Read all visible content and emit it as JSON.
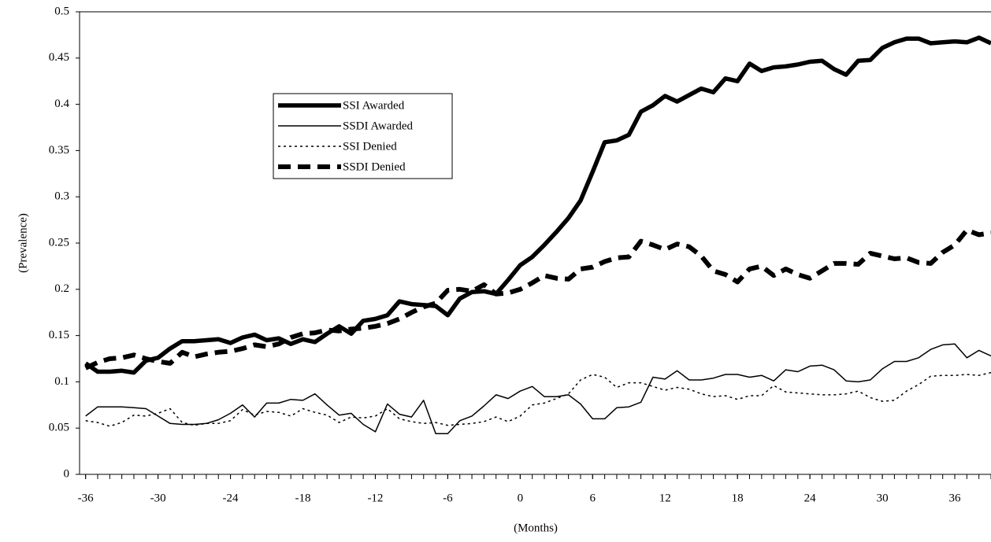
{
  "chart_data": {
    "type": "line",
    "x_label": "(Months)",
    "y_label": "(Prevalence)",
    "x": [
      -36,
      -35,
      -34,
      -33,
      -32,
      -31,
      -30,
      -29,
      -28,
      -27,
      -26,
      -25,
      -24,
      -23,
      -22,
      -21,
      -20,
      -19,
      -18,
      -17,
      -16,
      -15,
      -14,
      -13,
      -12,
      -11,
      -10,
      -9,
      -8,
      -7,
      -6,
      -5,
      -4,
      -3,
      -2,
      -1,
      0,
      1,
      2,
      3,
      4,
      5,
      6,
      7,
      8,
      9,
      10,
      11,
      12,
      13,
      14,
      15,
      16,
      17,
      18,
      19,
      20,
      21,
      22,
      23,
      24,
      25,
      26,
      27,
      28,
      29,
      30,
      31,
      32,
      33,
      34,
      35,
      36,
      37,
      38,
      39
    ],
    "series": [
      {
        "name": "SSI Awarded",
        "color": "#000000",
        "line_style": "thick-solid",
        "values": [
          0.12,
          0.111,
          0.111,
          0.112,
          0.11,
          0.123,
          0.126,
          0.136,
          0.144,
          0.144,
          0.145,
          0.146,
          0.142,
          0.148,
          0.151,
          0.145,
          0.147,
          0.141,
          0.146,
          0.143,
          0.152,
          0.16,
          0.152,
          0.166,
          0.168,
          0.172,
          0.187,
          0.184,
          0.183,
          0.182,
          0.172,
          0.19,
          0.197,
          0.198,
          0.195,
          0.21,
          0.226,
          0.235,
          0.248,
          0.262,
          0.277,
          0.296,
          0.327,
          0.359,
          0.361,
          0.367,
          0.392,
          0.399,
          0.409,
          0.403,
          0.41,
          0.417,
          0.413,
          0.428,
          0.425,
          0.444,
          0.436,
          0.44,
          0.441,
          0.443,
          0.446,
          0.447,
          0.438,
          0.432,
          0.447,
          0.448,
          0.461,
          0.467,
          0.471,
          0.471,
          0.466,
          0.467,
          0.468,
          0.467,
          0.472,
          0.466
        ]
      },
      {
        "name": "SSDI Awarded",
        "color": "#000000",
        "line_style": "thin-solid",
        "values": [
          0.063,
          0.073,
          0.073,
          0.073,
          0.072,
          0.071,
          0.063,
          0.055,
          0.054,
          0.054,
          0.055,
          0.059,
          0.066,
          0.075,
          0.062,
          0.077,
          0.077,
          0.081,
          0.08,
          0.087,
          0.075,
          0.064,
          0.066,
          0.054,
          0.046,
          0.076,
          0.065,
          0.062,
          0.08,
          0.044,
          0.044,
          0.058,
          0.063,
          0.074,
          0.086,
          0.082,
          0.09,
          0.095,
          0.084,
          0.084,
          0.086,
          0.076,
          0.06,
          0.06,
          0.072,
          0.073,
          0.078,
          0.105,
          0.103,
          0.112,
          0.102,
          0.102,
          0.104,
          0.108,
          0.108,
          0.105,
          0.107,
          0.101,
          0.113,
          0.111,
          0.117,
          0.118,
          0.113,
          0.101,
          0.1,
          0.102,
          0.114,
          0.122,
          0.122,
          0.126,
          0.135,
          0.14,
          0.141,
          0.126,
          0.134,
          0.128
        ]
      },
      {
        "name": "SSI Denied",
        "color": "#000000",
        "line_style": "thin-dotted",
        "values": [
          0.058,
          0.056,
          0.052,
          0.056,
          0.064,
          0.063,
          0.066,
          0.071,
          0.056,
          0.053,
          0.055,
          0.055,
          0.058,
          0.07,
          0.064,
          0.068,
          0.067,
          0.063,
          0.071,
          0.067,
          0.064,
          0.056,
          0.062,
          0.061,
          0.063,
          0.071,
          0.06,
          0.057,
          0.055,
          0.056,
          0.053,
          0.054,
          0.055,
          0.057,
          0.062,
          0.057,
          0.063,
          0.075,
          0.077,
          0.082,
          0.087,
          0.102,
          0.108,
          0.105,
          0.094,
          0.099,
          0.099,
          0.095,
          0.091,
          0.094,
          0.092,
          0.087,
          0.084,
          0.085,
          0.081,
          0.085,
          0.085,
          0.096,
          0.089,
          0.088,
          0.087,
          0.086,
          0.086,
          0.087,
          0.09,
          0.083,
          0.079,
          0.08,
          0.09,
          0.097,
          0.106,
          0.107,
          0.107,
          0.108,
          0.107,
          0.11
        ]
      },
      {
        "name": "SSDI Denied",
        "color": "#000000",
        "line_style": "thick-dashed",
        "values": [
          0.115,
          0.121,
          0.125,
          0.126,
          0.129,
          0.125,
          0.122,
          0.12,
          0.132,
          0.127,
          0.13,
          0.132,
          0.133,
          0.136,
          0.14,
          0.138,
          0.141,
          0.148,
          0.152,
          0.153,
          0.156,
          0.155,
          0.157,
          0.158,
          0.16,
          0.163,
          0.168,
          0.175,
          0.181,
          0.185,
          0.199,
          0.2,
          0.198,
          0.205,
          0.195,
          0.196,
          0.2,
          0.207,
          0.215,
          0.212,
          0.211,
          0.222,
          0.224,
          0.23,
          0.234,
          0.235,
          0.252,
          0.248,
          0.243,
          0.249,
          0.246,
          0.236,
          0.22,
          0.216,
          0.208,
          0.222,
          0.225,
          0.215,
          0.222,
          0.216,
          0.212,
          0.22,
          0.228,
          0.228,
          0.227,
          0.239,
          0.236,
          0.233,
          0.234,
          0.229,
          0.228,
          0.24,
          0.248,
          0.264,
          0.259,
          0.261
        ]
      }
    ],
    "xlim": [
      -36.5,
      39
    ],
    "ylim": [
      0,
      0.5
    ],
    "xticks": [
      -36,
      -30,
      -24,
      -18,
      -12,
      -6,
      0,
      6,
      12,
      18,
      24,
      30,
      36
    ],
    "yticks": [
      0,
      0.05,
      0.1,
      0.15,
      0.2,
      0.25,
      0.3,
      0.35,
      0.4,
      0.45,
      0.5
    ],
    "minor_xticks": true,
    "legend": "upper left"
  }
}
